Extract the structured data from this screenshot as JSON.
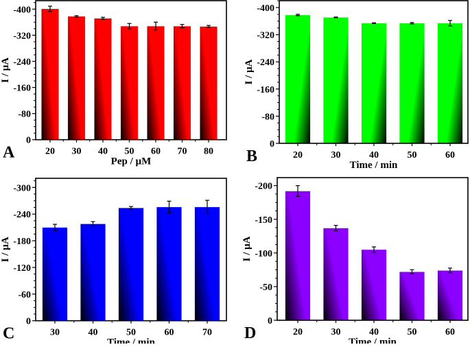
{
  "chart_data": [
    {
      "type": "bar",
      "panel_label": "A",
      "xlabel": "Pep / µM",
      "ylabel": "I / µA",
      "categories": [
        "20",
        "30",
        "40",
        "50",
        "60",
        "70",
        "80"
      ],
      "values": [
        -401,
        -378,
        -372,
        -348,
        -348,
        -348,
        -347
      ],
      "errors": [
        8,
        2,
        3,
        8,
        12,
        5,
        3
      ],
      "ylim": [
        0,
        -420
      ],
      "yticks": [
        "0",
        "-80",
        "-160",
        "-240",
        "-320",
        "-400"
      ],
      "color": "#ff0000",
      "grid": false
    },
    {
      "type": "bar",
      "panel_label": "B",
      "xlabel": "Time / min",
      "ylabel": "I / µA",
      "categories": [
        "20",
        "30",
        "40",
        "50",
        "60"
      ],
      "values": [
        -378,
        -371,
        -354,
        -354,
        -354
      ],
      "errors": [
        2,
        1,
        1,
        2,
        8
      ],
      "ylim": [
        0,
        -422
      ],
      "yticks": [
        "0",
        "-80",
        "-160",
        "-240",
        "-320",
        "-400"
      ],
      "color": "#00ff00",
      "grid": false
    },
    {
      "type": "bar",
      "panel_label": "C",
      "xlabel": "Time / min",
      "ylabel": "I / µA",
      "categories": [
        "30",
        "40",
        "50",
        "60",
        "70"
      ],
      "values": [
        -210,
        -218,
        -254,
        -256,
        -256
      ],
      "errors": [
        7,
        5,
        3,
        13,
        15
      ],
      "ylim": [
        0,
        -318
      ],
      "yticks": [
        "0",
        "-60",
        "-120",
        "-180",
        "-240",
        "-300"
      ],
      "color": "#0000ff",
      "grid": false
    },
    {
      "type": "bar",
      "panel_label": "D",
      "xlabel": "Time / min",
      "ylabel": "I / µA",
      "categories": [
        "20",
        "30",
        "40",
        "50",
        "60"
      ],
      "values": [
        -192,
        -137,
        -105,
        -72,
        -74
      ],
      "errors": [
        8,
        4,
        4,
        3,
        3.5
      ],
      "ylim": [
        0,
        -212
      ],
      "yticks": [
        "0",
        "-50",
        "-100",
        "-150",
        "-200"
      ],
      "color": "#8b00ff",
      "grid": false
    }
  ]
}
